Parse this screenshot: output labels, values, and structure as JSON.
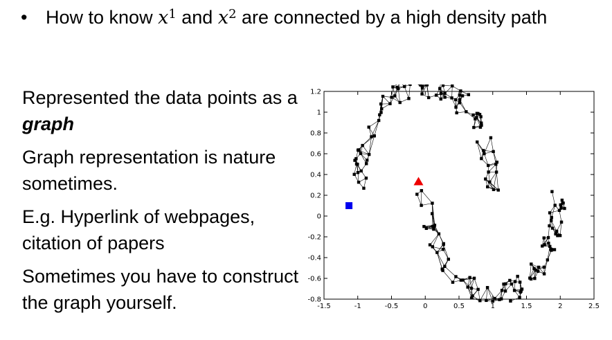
{
  "bullet": {
    "symbol": "•",
    "text_before": "How to know ",
    "var1": "x",
    "sup1": "1",
    "text_mid": " and ",
    "var2": "x",
    "sup2": "2",
    "text_after": " are connected by a high density path"
  },
  "left": {
    "p1_prefix": "Represented the data points as a ",
    "p1_emph": "graph",
    "p2": "Graph representation is nature sometimes.",
    "p3": "E.g. Hyperlink of webpages, citation of papers",
    "p4": "Sometimes you have to construct the graph yourself."
  },
  "chart_data": {
    "type": "scatter",
    "xlim": [
      -1.5,
      2.5
    ],
    "ylim": [
      -0.8,
      1.2
    ],
    "x_ticks": [
      "-1.5",
      "-1",
      "-0.5",
      "0",
      "0.5",
      "1",
      "1.5",
      "2",
      "2.5"
    ],
    "y_ticks": [
      "1.2",
      "1",
      "0.8",
      "0.6",
      "0.4",
      "0.2",
      "0",
      "-0.2",
      "-0.4",
      "-0.6",
      "-0.8"
    ],
    "graph": "k-nearest-neighbor graph over two interleaving half-moons",
    "labeled_points": [
      {
        "shape": "square",
        "color": "#0000ee",
        "x": -1.13,
        "y": 0.1
      },
      {
        "shape": "triangle",
        "color": "#ee0000",
        "x": -0.1,
        "y": 0.33
      }
    ],
    "moons": [
      {
        "cx": 0,
        "cy": 0.25,
        "r": 1.0,
        "from_deg": 0,
        "to_deg": 180
      },
      {
        "cx": 1,
        "cy": 0.25,
        "r": 1.0,
        "from_deg": 180,
        "to_deg": 360
      }
    ]
  }
}
